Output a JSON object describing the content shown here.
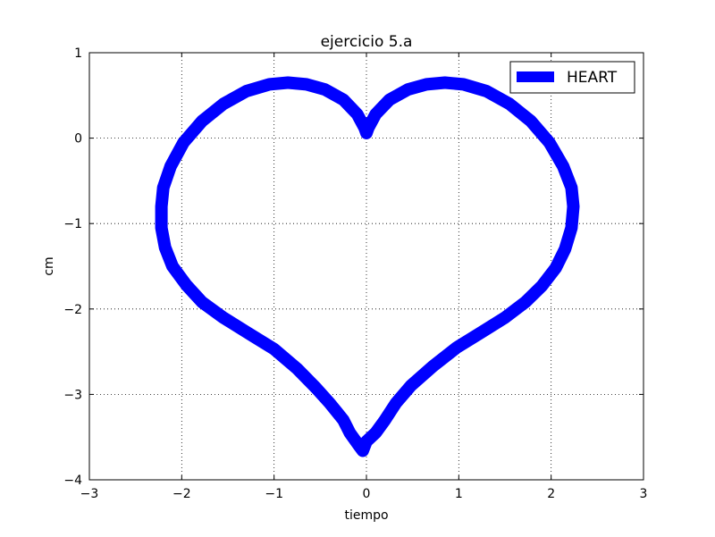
{
  "chart_data": {
    "type": "line",
    "title": "ejercicio 5.a",
    "xlabel": "tiempo",
    "ylabel": "cm",
    "xlim": [
      -3,
      3
    ],
    "ylim": [
      -4,
      1
    ],
    "x_ticks": [
      -3,
      -2,
      -1,
      0,
      1,
      2,
      3
    ],
    "y_ticks": [
      -4,
      -3,
      -2,
      -1,
      0,
      1
    ],
    "x_tick_labels": [
      "−3",
      "−2",
      "−1",
      "0",
      "1",
      "2",
      "3"
    ],
    "y_tick_labels": [
      "−4",
      "−3",
      "−2",
      "−1",
      "0",
      "1"
    ],
    "grid": true,
    "legend_position": "top-right",
    "series": [
      {
        "name": "HEART",
        "color": "#0000ff",
        "points": [
          [
            0.0,
            0.06
          ],
          [
            0.02,
            0.12
          ],
          [
            0.1,
            0.28
          ],
          [
            0.25,
            0.45
          ],
          [
            0.45,
            0.57
          ],
          [
            0.65,
            0.63
          ],
          [
            0.85,
            0.65
          ],
          [
            1.05,
            0.63
          ],
          [
            1.3,
            0.55
          ],
          [
            1.55,
            0.4
          ],
          [
            1.78,
            0.2
          ],
          [
            1.98,
            -0.05
          ],
          [
            2.13,
            -0.33
          ],
          [
            2.22,
            -0.58
          ],
          [
            2.24,
            -0.8
          ],
          [
            2.22,
            -1.05
          ],
          [
            2.15,
            -1.3
          ],
          [
            2.05,
            -1.52
          ],
          [
            1.9,
            -1.73
          ],
          [
            1.72,
            -1.92
          ],
          [
            1.5,
            -2.1
          ],
          [
            1.25,
            -2.27
          ],
          [
            0.98,
            -2.45
          ],
          [
            0.72,
            -2.67
          ],
          [
            0.48,
            -2.9
          ],
          [
            0.32,
            -3.1
          ],
          [
            0.2,
            -3.3
          ],
          [
            0.1,
            -3.45
          ],
          [
            0.0,
            -3.55
          ],
          [
            -0.04,
            -3.66
          ],
          [
            -0.08,
            -3.6
          ],
          [
            -0.18,
            -3.45
          ],
          [
            -0.25,
            -3.3
          ],
          [
            -0.4,
            -3.1
          ],
          [
            -0.55,
            -2.92
          ],
          [
            -0.75,
            -2.7
          ],
          [
            -1.0,
            -2.47
          ],
          [
            -1.3,
            -2.27
          ],
          [
            -1.55,
            -2.1
          ],
          [
            -1.78,
            -1.92
          ],
          [
            -1.95,
            -1.72
          ],
          [
            -2.1,
            -1.5
          ],
          [
            -2.18,
            -1.28
          ],
          [
            -2.22,
            -1.05
          ],
          [
            -2.22,
            -0.8
          ],
          [
            -2.2,
            -0.58
          ],
          [
            -2.12,
            -0.33
          ],
          [
            -1.98,
            -0.05
          ],
          [
            -1.78,
            0.2
          ],
          [
            -1.55,
            0.4
          ],
          [
            -1.3,
            0.55
          ],
          [
            -1.05,
            0.63
          ],
          [
            -0.85,
            0.65
          ],
          [
            -0.65,
            0.63
          ],
          [
            -0.45,
            0.57
          ],
          [
            -0.25,
            0.45
          ],
          [
            -0.1,
            0.28
          ],
          [
            -0.02,
            0.12
          ],
          [
            0.0,
            0.06
          ]
        ]
      }
    ]
  }
}
